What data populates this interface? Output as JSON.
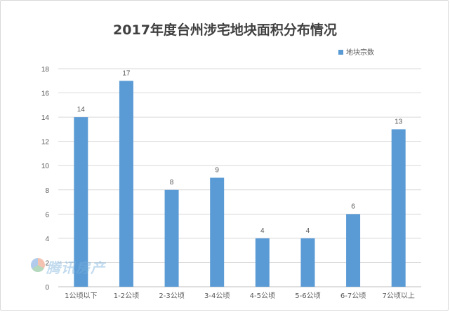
{
  "chart_data": {
    "type": "bar",
    "title": "2017年度台州涉宅地块面积分布情况",
    "categories": [
      "1公顷以下",
      "1-2公顷",
      "2-3公顷",
      "3-4公顷",
      "4-5公顷",
      "5-6公顷",
      "6-7公顷",
      "7公顷以上"
    ],
    "series": [
      {
        "name": "地块宗数",
        "values": [
          14,
          17,
          8,
          9,
          4,
          4,
          6,
          13
        ]
      }
    ],
    "ylim": [
      0,
      18
    ],
    "yticks": [
      0,
      2,
      4,
      6,
      8,
      10,
      12,
      14,
      16,
      18
    ],
    "grid": true,
    "legend": "top-right",
    "colors": {
      "bar": "#5b9bd5",
      "grid": "#d9d9d9",
      "text": "#595959"
    }
  },
  "watermark": {
    "text": "腾讯房产"
  }
}
